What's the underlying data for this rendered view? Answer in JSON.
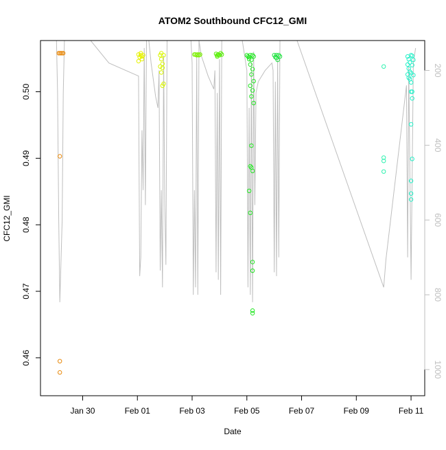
{
  "chart_data": {
    "type": "scatter",
    "title": "ATOM2 Southbound CFC12_GMI",
    "xlabel": "Date",
    "ylabel": "CFC12_GMI",
    "x_ticks": [
      "Jan 30",
      "Feb 01",
      "Feb 03",
      "Feb 05",
      "Feb 07",
      "Feb 09",
      "Feb 11"
    ],
    "xlim": [
      "Jan 28 11:00",
      "Feb 11 12:00"
    ],
    "ylim": [
      0.4543,
      0.5077
    ],
    "y_ticks": [
      0.46,
      0.47,
      0.48,
      0.49,
      0.5
    ],
    "y2_ticks": [
      200,
      400,
      600,
      800,
      1000
    ],
    "y2lim": [
      1070,
      120
    ],
    "grid": false,
    "series": [
      {
        "type": "points",
        "points": [
          [
            "Jan 29 03:00",
            0.5058,
            "#E8890C"
          ],
          [
            "Jan 29 04:00",
            0.5058,
            "#E8890C"
          ],
          [
            "Jan 29 05:00",
            0.5058,
            "#E8890C"
          ],
          [
            "Jan 29 06:00",
            0.5058,
            "#E8890C"
          ],
          [
            "Jan 29 07:00",
            0.5058,
            "#E8890C"
          ],
          [
            "Jan 29 04:00",
            0.4903,
            "#E8890C"
          ],
          [
            "Jan 29 04:00",
            0.4595,
            "#E8890C"
          ],
          [
            "Jan 29 04:00",
            0.4578,
            "#E8890C"
          ],
          [
            "Feb 01 01:00",
            0.5056,
            "#E6F200"
          ],
          [
            "Feb 01 02:00",
            0.5052,
            "#E6F200"
          ],
          [
            "Feb 01 03:00",
            0.5055,
            "#E6F200"
          ],
          [
            "Feb 01 04:00",
            0.5049,
            "#E6F200"
          ],
          [
            "Feb 01 05:00",
            0.5055,
            "#E6F200"
          ],
          [
            "Feb 01 01:00",
            0.5046,
            "#E6F200"
          ],
          [
            "Feb 01 03:00",
            0.5058,
            "#E6F200"
          ],
          [
            "Feb 01 04:00",
            0.5053,
            "#E6F200"
          ],
          [
            "Feb 01 20:00",
            0.5055,
            "#D9F500"
          ],
          [
            "Feb 01 21:00",
            0.5049,
            "#D9F500"
          ],
          [
            "Feb 01 22:00",
            0.5042,
            "#D9F500"
          ],
          [
            "Feb 01 20:00",
            0.5038,
            "#D9F500"
          ],
          [
            "Feb 01 21:00",
            0.5029,
            "#D9F500"
          ],
          [
            "Feb 01 22:00",
            0.5036,
            "#D9F500"
          ],
          [
            "Feb 01 23:00",
            0.5012,
            "#D9F500"
          ],
          [
            "Feb 01 22:00",
            0.5009,
            "#D9F500"
          ],
          [
            "Feb 01 23:00",
            0.5055,
            "#D9F500"
          ],
          [
            "Feb 01 21:00",
            0.5058,
            "#D9F500"
          ],
          [
            "Feb 03 02:00",
            0.5056,
            "#7CF000"
          ],
          [
            "Feb 03 03:00",
            0.5056,
            "#7CF000"
          ],
          [
            "Feb 03 04:00",
            0.5055,
            "#7CF000"
          ],
          [
            "Feb 03 05:00",
            0.5056,
            "#7CF000"
          ],
          [
            "Feb 03 06:00",
            0.5055,
            "#7CF000"
          ],
          [
            "Feb 03 07:00",
            0.5056,
            "#7CF000"
          ],
          [
            "Feb 03 21:00",
            0.5057,
            "#55EE00"
          ],
          [
            "Feb 03 22:00",
            0.5053,
            "#55EE00"
          ],
          [
            "Feb 03 23:00",
            0.5056,
            "#55EE00"
          ],
          [
            "Feb 04 00:00",
            0.5055,
            "#55EE00"
          ],
          [
            "Feb 04 01:00",
            0.5058,
            "#55EE00"
          ],
          [
            "Feb 04 02:00",
            0.5056,
            "#55EE00"
          ],
          [
            "Feb 03 22:00",
            0.5055,
            "#55EE00"
          ],
          [
            "Feb 05 00:00",
            0.5055,
            "#22E622"
          ],
          [
            "Feb 05 01:00",
            0.5053,
            "#22E622"
          ],
          [
            "Feb 05 02:00",
            0.5049,
            "#22E622"
          ],
          [
            "Feb 05 03:00",
            0.5055,
            "#22E622"
          ],
          [
            "Feb 05 04:00",
            0.5048,
            "#22E622"
          ],
          [
            "Feb 05 05:00",
            0.5055,
            "#22E622"
          ],
          [
            "Feb 05 06:00",
            0.5053,
            "#22E622"
          ],
          [
            "Feb 05 02:00",
            0.5052,
            "#22E622"
          ],
          [
            "Feb 05 03:00",
            0.5041,
            "#22E622"
          ],
          [
            "Feb 05 05:00",
            0.5034,
            "#22E622"
          ],
          [
            "Feb 05 04:00",
            0.5026,
            "#22E622"
          ],
          [
            "Feb 05 06:00",
            0.5016,
            "#22E622"
          ],
          [
            "Feb 05 03:00",
            0.5009,
            "#22E622"
          ],
          [
            "Feb 05 05:00",
            0.5002,
            "#22E622"
          ],
          [
            "Feb 05 04:00",
            0.4993,
            "#22E622"
          ],
          [
            "Feb 05 06:00",
            0.4983,
            "#22E622"
          ],
          [
            "Feb 05 04:00",
            0.4919,
            "#22E622"
          ],
          [
            "Feb 05 03:00",
            0.4888,
            "#22E622"
          ],
          [
            "Feb 05 04:00",
            0.4886,
            "#22E622"
          ],
          [
            "Feb 05 05:00",
            0.4881,
            "#22E622"
          ],
          [
            "Feb 05 02:00",
            0.4851,
            "#22E622"
          ],
          [
            "Feb 05 03:00",
            0.4818,
            "#22E622"
          ],
          [
            "Feb 05 05:00",
            0.4744,
            "#22E622"
          ],
          [
            "Feb 05 05:00",
            0.4731,
            "#22E622"
          ],
          [
            "Feb 05 05:00",
            0.4671,
            "#22E622"
          ],
          [
            "Feb 05 05:00",
            0.4667,
            "#22E622"
          ],
          [
            "Feb 06 00:00",
            0.5055,
            "#1BE23C"
          ],
          [
            "Feb 06 01:00",
            0.5052,
            "#1BE23C"
          ],
          [
            "Feb 06 02:00",
            0.5055,
            "#1BE23C"
          ],
          [
            "Feb 06 03:00",
            0.5048,
            "#1BE23C"
          ],
          [
            "Feb 06 04:00",
            0.5055,
            "#1BE23C"
          ],
          [
            "Feb 06 05:00",
            0.5053,
            "#1BE23C"
          ],
          [
            "Feb 06 02:00",
            0.5051,
            "#1BE23C"
          ],
          [
            "Feb 10 00:00",
            0.5038,
            "#30F2B0"
          ],
          [
            "Feb 10 00:00",
            0.4901,
            "#30F2B0"
          ],
          [
            "Feb 10 00:00",
            0.4896,
            "#30F2B0"
          ],
          [
            "Feb 10 00:00",
            0.488,
            "#30F2B0"
          ],
          [
            "Feb 10 21:00",
            0.5053,
            "#25F0C8"
          ],
          [
            "Feb 10 22:00",
            0.5049,
            "#25F0C8"
          ],
          [
            "Feb 10 23:00",
            0.5044,
            "#25F0C8"
          ],
          [
            "Feb 10 21:00",
            0.5041,
            "#25F0C8"
          ],
          [
            "Feb 10 22:00",
            0.5035,
            "#25F0C8"
          ],
          [
            "Feb 10 23:00",
            0.503,
            "#25F0C8"
          ],
          [
            "Feb 10 21:00",
            0.5026,
            "#25F0C8"
          ],
          [
            "Feb 10 22:00",
            0.5021,
            "#25F0C8"
          ],
          [
            "Feb 11 00:00",
            0.5055,
            "#25F0C8"
          ],
          [
            "Feb 11 01:00",
            0.5054,
            "#25F0C8"
          ],
          [
            "Feb 11 02:00",
            0.5048,
            "#25F0C8"
          ],
          [
            "Feb 11 01:00",
            0.504,
            "#25F0C8"
          ],
          [
            "Feb 11 00:00",
            0.5028,
            "#25F0C8"
          ],
          [
            "Feb 11 02:00",
            0.5025,
            "#25F0C8"
          ],
          [
            "Feb 10 23:00",
            0.5019,
            "#25F0C8"
          ],
          [
            "Feb 11 00:00",
            0.5014,
            "#25F0C8"
          ],
          [
            "Feb 11 00:00",
            0.5,
            "#25F0C8"
          ],
          [
            "Feb 11 01:00",
            0.5,
            "#25F0C8"
          ],
          [
            "Feb 11 01:00",
            0.499,
            "#25F0C8"
          ],
          [
            "Feb 11 00:00",
            0.4951,
            "#25F0C8"
          ],
          [
            "Feb 11 01:00",
            0.4899,
            "#25F0C8"
          ],
          [
            "Feb 11 00:00",
            0.4866,
            "#25F0C8"
          ],
          [
            "Feb 11 00:00",
            0.4847,
            "#25F0C8"
          ],
          [
            "Feb 11 00:00",
            0.4838,
            "#25F0C8"
          ]
        ]
      },
      {
        "type": "line",
        "color": "#bebebe",
        "path": [
          [
            "Jan 29 01:00",
            120
          ],
          [
            "Jan 29 02:00",
            260
          ],
          [
            "Jan 29 03:00",
            600
          ],
          [
            "Jan 29 04:00",
            820
          ],
          [
            "Jan 29 06:00",
            600
          ],
          [
            "Jan 29 07:00",
            260
          ],
          [
            "Jan 29 08:00",
            120
          ],
          [
            "Jan 30 07:00",
            120
          ],
          [
            "Jan 30 23:00",
            180
          ],
          [
            "Feb 01 01:00",
            215
          ],
          [
            "Feb 01 02:00",
            750
          ],
          [
            "Feb 01 03:00",
            700
          ],
          [
            "Feb 01 04:00",
            360
          ],
          [
            "Feb 01 05:00",
            520
          ],
          [
            "Feb 01 06:00",
            140
          ],
          [
            "Feb 01 07:00",
            560
          ],
          [
            "Feb 01 08:00",
            120
          ],
          [
            "Feb 01 10:00",
            120
          ],
          [
            "Feb 01 12:00",
            180
          ],
          [
            "Feb 01 16:00",
            270
          ],
          [
            "Feb 01 18:00",
            300
          ],
          [
            "Feb 01 19:00",
            200
          ],
          [
            "Feb 01 20:00",
            735
          ],
          [
            "Feb 01 21:00",
            520
          ],
          [
            "Feb 01 22:00",
            780
          ],
          [
            "Feb 01 23:00",
            160
          ],
          [
            "Feb 02 00:00",
            560
          ],
          [
            "Feb 02 01:00",
            720
          ],
          [
            "Feb 02 02:00",
            120
          ],
          [
            "Feb 02 20:00",
            120
          ],
          [
            "Feb 02 23:00",
            120
          ],
          [
            "Feb 03 00:00",
            180
          ],
          [
            "Feb 03 01:00",
            800
          ],
          [
            "Feb 03 02:00",
            520
          ],
          [
            "Feb 03 03:00",
            780
          ],
          [
            "Feb 03 04:00",
            160
          ],
          [
            "Feb 03 05:00",
            800
          ],
          [
            "Feb 03 06:00",
            120
          ],
          [
            "Feb 03 08:00",
            160
          ],
          [
            "Feb 03 14:00",
            215
          ],
          [
            "Feb 03 19:00",
            250
          ],
          [
            "Feb 03 20:00",
            200
          ],
          [
            "Feb 03 21:00",
            740
          ],
          [
            "Feb 03 22:00",
            260
          ],
          [
            "Feb 03 23:00",
            760
          ],
          [
            "Feb 04 00:00",
            170
          ],
          [
            "Feb 04 01:00",
            800
          ],
          [
            "Feb 04 02:00",
            120
          ],
          [
            "Feb 04 12:00",
            120
          ],
          [
            "Feb 04 20:00",
            120
          ],
          [
            "Feb 05 00:00",
            200
          ],
          [
            "Feb 05 01:00",
            780
          ],
          [
            "Feb 05 02:00",
            300
          ],
          [
            "Feb 05 03:00",
            800
          ],
          [
            "Feb 05 04:00",
            180
          ],
          [
            "Feb 05 05:00",
            820
          ],
          [
            "Feb 05 06:00",
            150
          ],
          [
            "Feb 05 07:00",
            560
          ],
          [
            "Feb 05 08:00",
            260
          ],
          [
            "Feb 05 10:00",
            230
          ],
          [
            "Feb 05 16:00",
            200
          ],
          [
            "Feb 05 22:00",
            180
          ],
          [
            "Feb 05 23:00",
            200
          ],
          [
            "Feb 06 00:00",
            740
          ],
          [
            "Feb 06 01:00",
            230
          ],
          [
            "Feb 06 02:00",
            750
          ],
          [
            "Feb 06 03:00",
            170
          ],
          [
            "Feb 06 04:00",
            700
          ],
          [
            "Feb 06 05:00",
            120
          ],
          [
            "Feb 06 07:00",
            120
          ],
          [
            "Feb 06 20:00",
            120
          ],
          [
            "Feb 10 00:00",
            780
          ],
          [
            "Feb 10 02:00",
            705
          ],
          [
            "Feb 10 20:00",
            240
          ],
          [
            "Feb 10 21:00",
            700
          ],
          [
            "Feb 10 22:00",
            190
          ],
          [
            "Feb 11 00:00",
            760
          ],
          [
            "Feb 11 02:00",
            180
          ],
          [
            "Feb 11 04:00",
            140
          ]
        ]
      }
    ]
  }
}
